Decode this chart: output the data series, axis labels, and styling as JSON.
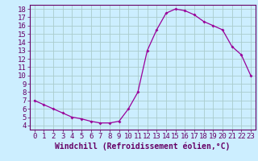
{
  "x": [
    0,
    1,
    2,
    3,
    4,
    5,
    6,
    7,
    8,
    9,
    10,
    11,
    12,
    13,
    14,
    15,
    16,
    17,
    18,
    19,
    20,
    21,
    22,
    23
  ],
  "y": [
    7.0,
    6.5,
    6.0,
    5.5,
    5.0,
    4.8,
    4.5,
    4.3,
    4.3,
    4.5,
    6.0,
    8.0,
    13.0,
    15.5,
    17.5,
    18.0,
    17.8,
    17.3,
    16.5,
    16.0,
    15.5,
    13.5,
    12.5,
    10.0
  ],
  "line_color": "#990099",
  "marker": "D",
  "marker_size": 2.0,
  "bg_color": "#cceeff",
  "grid_color": "#aacccc",
  "xlabel": "Windchill (Refroidissement éolien,°C)",
  "xlim": [
    -0.5,
    23.5
  ],
  "ylim": [
    3.5,
    18.5
  ],
  "xticks": [
    0,
    1,
    2,
    3,
    4,
    5,
    6,
    7,
    8,
    9,
    10,
    11,
    12,
    13,
    14,
    15,
    16,
    17,
    18,
    19,
    20,
    21,
    22,
    23
  ],
  "yticks": [
    4,
    5,
    6,
    7,
    8,
    9,
    10,
    11,
    12,
    13,
    14,
    15,
    16,
    17,
    18
  ],
  "xlabel_fontsize": 7,
  "tick_fontsize": 6.5,
  "spine_color": "#660066"
}
